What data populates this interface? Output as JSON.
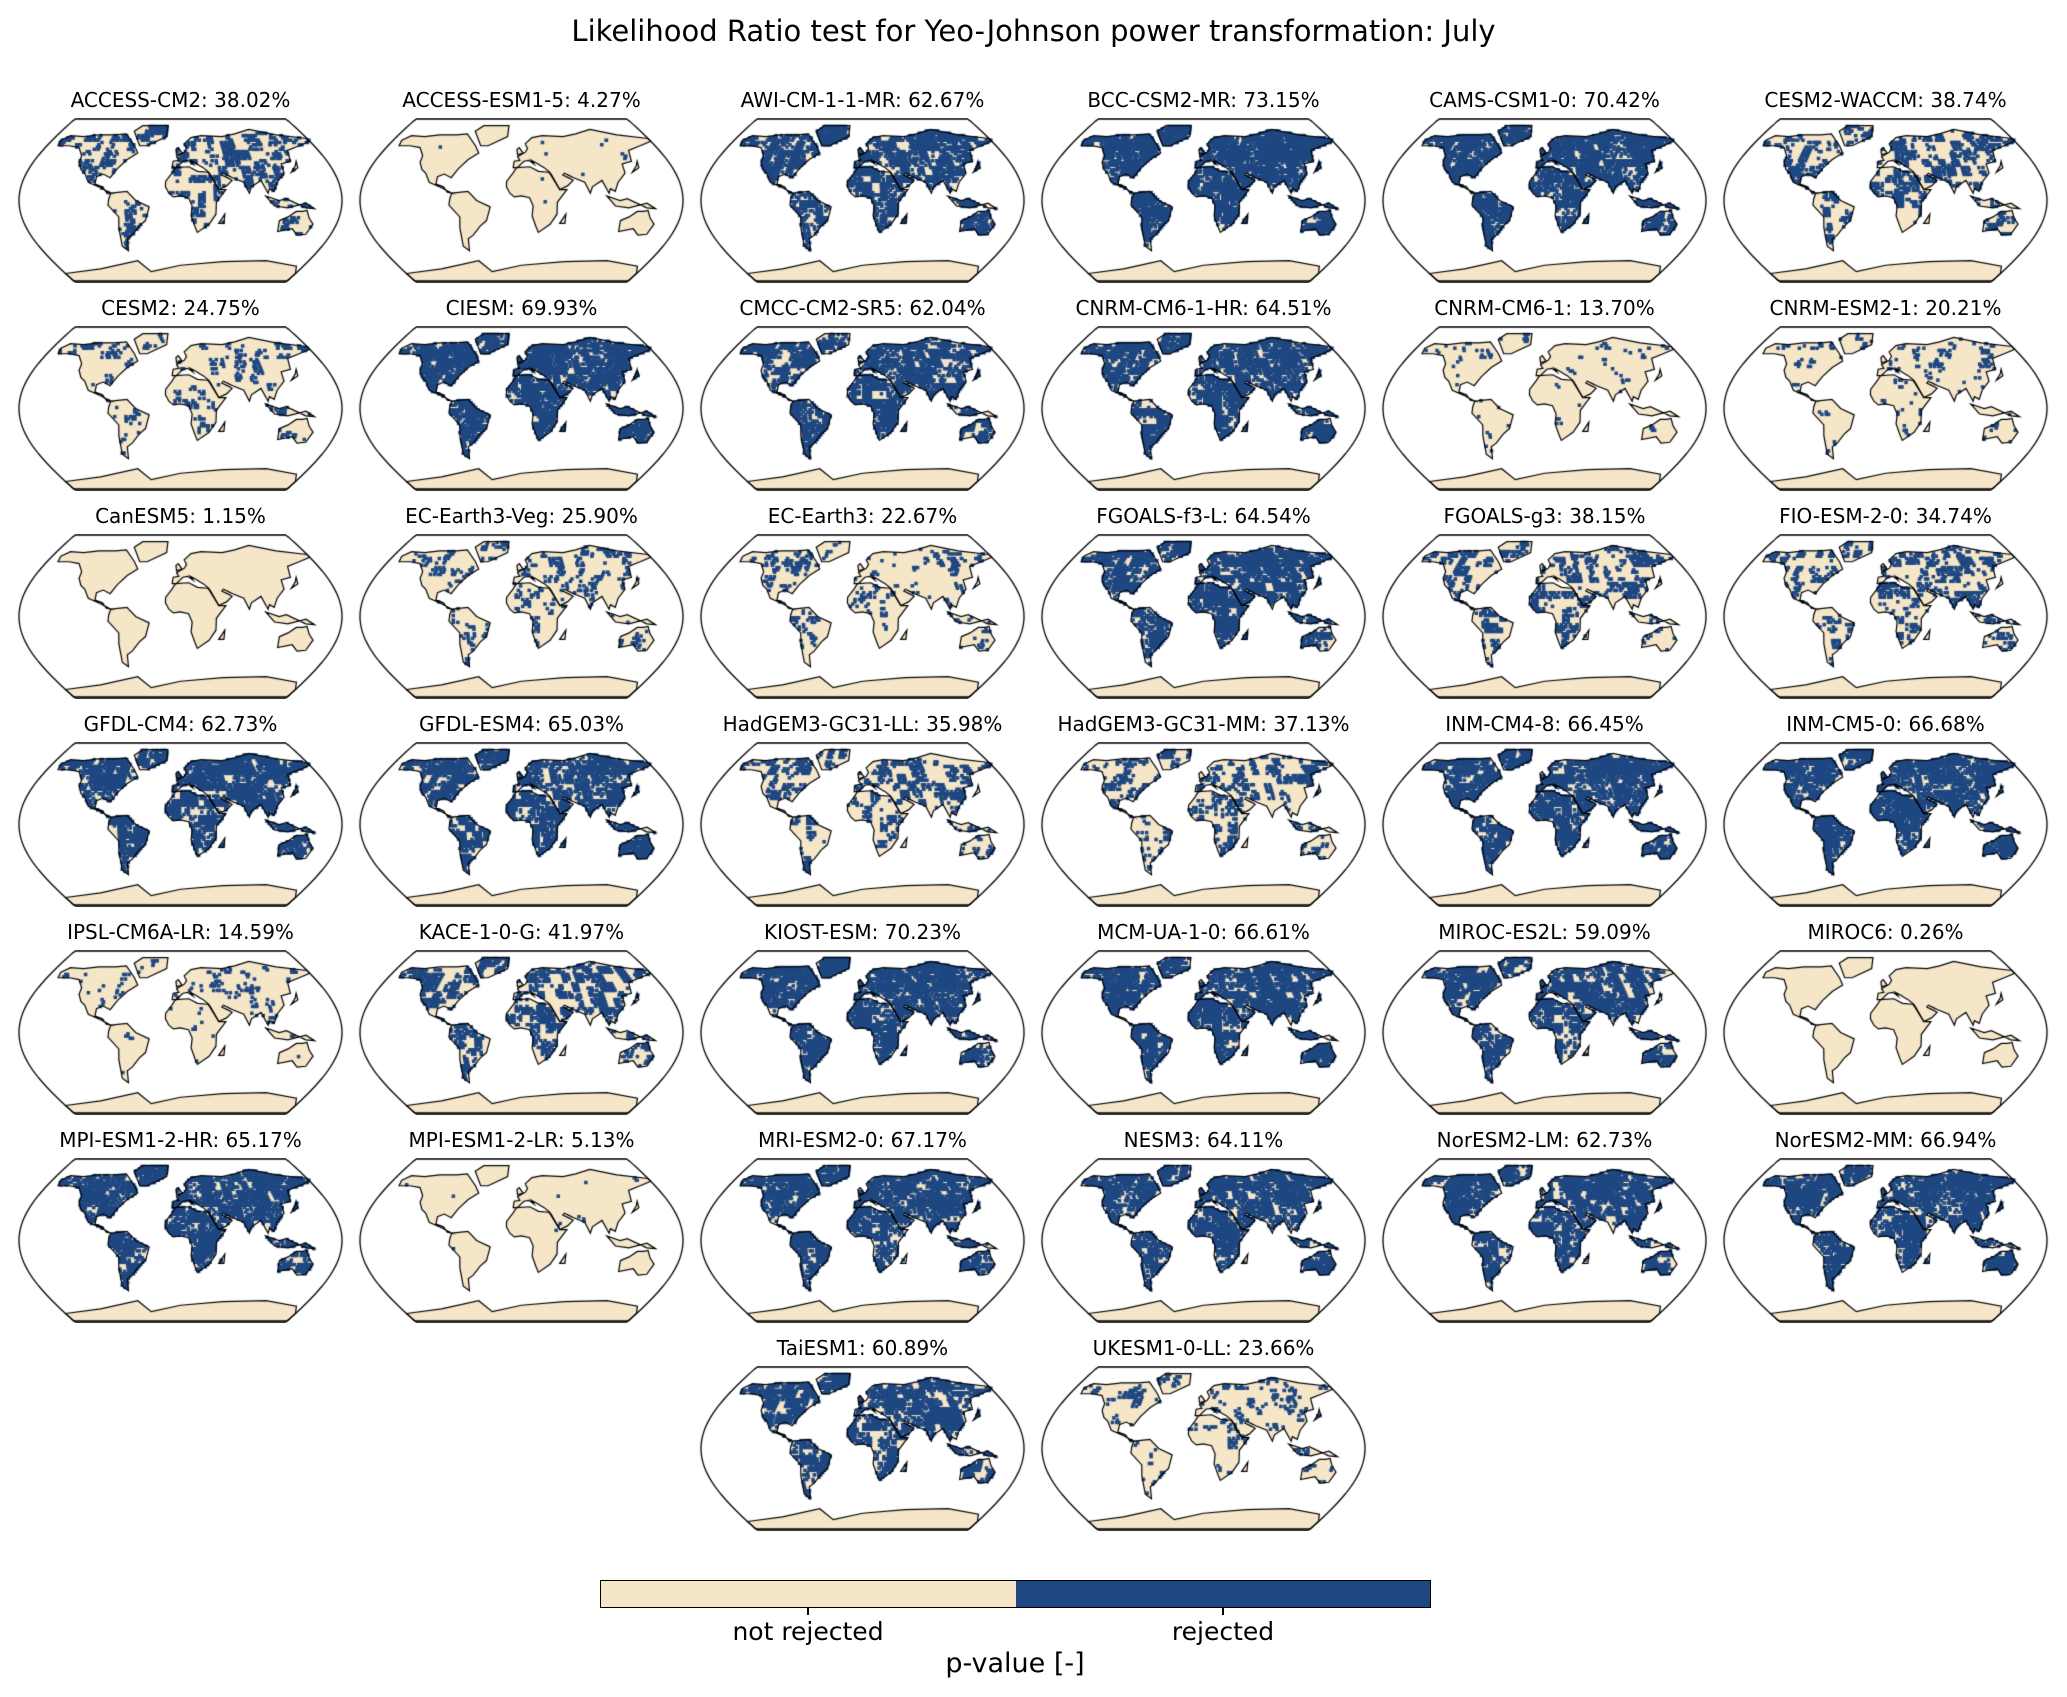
{
  "chart_data": {
    "type": "map",
    "title": "Likelihood Ratio test for Yeo-Johnson power transformation: July",
    "projection": "Robinson",
    "panels": [
      {
        "model": "ACCESS-CM2",
        "percent": 38.02
      },
      {
        "model": "ACCESS-ESM1-5",
        "percent": 4.27
      },
      {
        "model": "AWI-CM-1-1-MR",
        "percent": 62.67
      },
      {
        "model": "BCC-CSM2-MR",
        "percent": 73.15
      },
      {
        "model": "CAMS-CSM1-0",
        "percent": 70.42
      },
      {
        "model": "CESM2-WACCM",
        "percent": 38.74
      },
      {
        "model": "CESM2",
        "percent": 24.75
      },
      {
        "model": "CIESM",
        "percent": 69.93
      },
      {
        "model": "CMCC-CM2-SR5",
        "percent": 62.04
      },
      {
        "model": "CNRM-CM6-1-HR",
        "percent": 64.51
      },
      {
        "model": "CNRM-CM6-1",
        "percent": 13.7
      },
      {
        "model": "CNRM-ESM2-1",
        "percent": 20.21
      },
      {
        "model": "CanESM5",
        "percent": 1.15
      },
      {
        "model": "EC-Earth3-Veg",
        "percent": 25.9
      },
      {
        "model": "EC-Earth3",
        "percent": 22.67
      },
      {
        "model": "FGOALS-f3-L",
        "percent": 64.54
      },
      {
        "model": "FGOALS-g3",
        "percent": 38.15
      },
      {
        "model": "FIO-ESM-2-0",
        "percent": 34.74
      },
      {
        "model": "GFDL-CM4",
        "percent": 62.73
      },
      {
        "model": "GFDL-ESM4",
        "percent": 65.03
      },
      {
        "model": "HadGEM3-GC31-LL",
        "percent": 35.98
      },
      {
        "model": "HadGEM3-GC31-MM",
        "percent": 37.13
      },
      {
        "model": "INM-CM4-8",
        "percent": 66.45
      },
      {
        "model": "INM-CM5-0",
        "percent": 66.68
      },
      {
        "model": "IPSL-CM6A-LR",
        "percent": 14.59
      },
      {
        "model": "KACE-1-0-G",
        "percent": 41.97
      },
      {
        "model": "KIOST-ESM",
        "percent": 70.23
      },
      {
        "model": "MCM-UA-1-0",
        "percent": 66.61
      },
      {
        "model": "MIROC-ES2L",
        "percent": 59.09
      },
      {
        "model": "MIROC6",
        "percent": 0.26
      },
      {
        "model": "MPI-ESM1-2-HR",
        "percent": 65.17
      },
      {
        "model": "MPI-ESM1-2-LR",
        "percent": 5.13
      },
      {
        "model": "MRI-ESM2-0",
        "percent": 67.17
      },
      {
        "model": "NESM3",
        "percent": 64.11
      },
      {
        "model": "NorESM2-LM",
        "percent": 62.73
      },
      {
        "model": "NorESM2-MM",
        "percent": 66.94
      },
      {
        "model": "TaiESM1",
        "percent": 60.89
      },
      {
        "model": "UKESM1-0-LL",
        "percent": 23.66
      }
    ],
    "colorbar": {
      "label": "p-value [-]",
      "categories": [
        {
          "label": "not rejected",
          "color": "#f5e6c8"
        },
        {
          "label": "rejected",
          "color": "#1f4882"
        }
      ]
    }
  }
}
